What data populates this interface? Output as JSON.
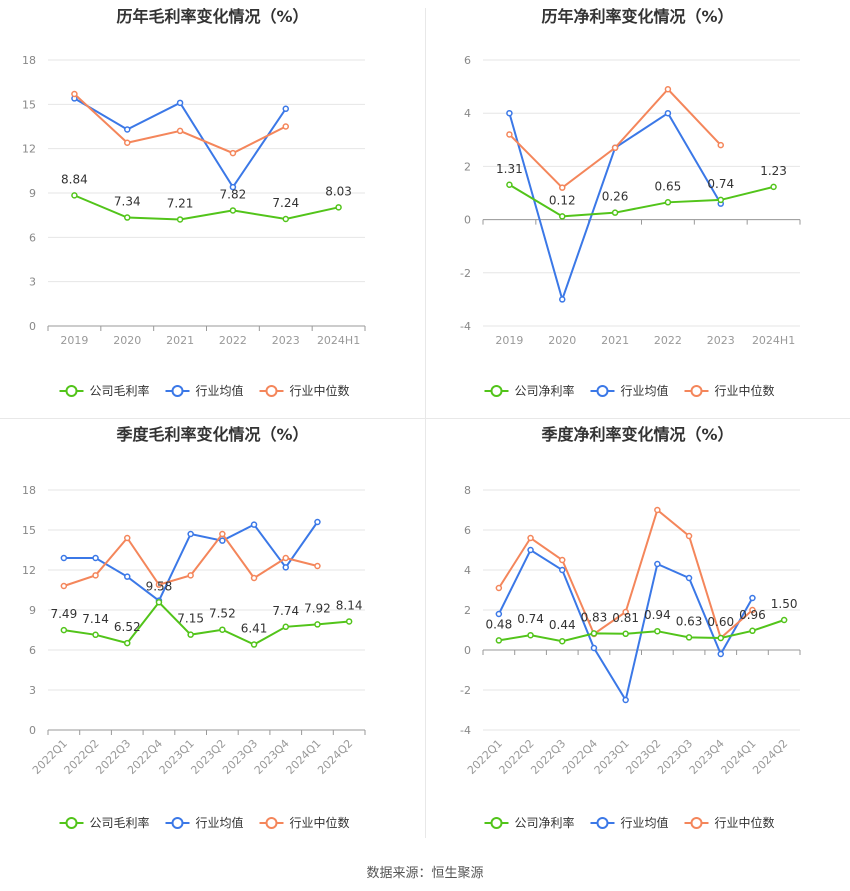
{
  "source_label": "数据来源：恒生聚源",
  "colors": {
    "company": "#52c41a",
    "industry_avg": "#3b78e7",
    "industry_median": "#f4865b"
  },
  "chart_data": [
    {
      "type": "line",
      "title": "历年毛利率变化情况（%）",
      "categories": [
        "2019",
        "2020",
        "2021",
        "2022",
        "2023",
        "2024H1"
      ],
      "ylim": [
        0,
        18
      ],
      "yticks": [
        0,
        3,
        6,
        9,
        12,
        15,
        18
      ],
      "grid": true,
      "legend_position": "bottom",
      "series": [
        {
          "name": "公司毛利率",
          "key": "company",
          "values": [
            8.84,
            7.34,
            7.21,
            7.82,
            7.24,
            8.03
          ],
          "labels": [
            "8.84",
            "7.34",
            "7.21",
            "7.82",
            "7.24",
            "8.03"
          ]
        },
        {
          "name": "行业均值",
          "key": "industry_avg",
          "values": [
            15.4,
            13.3,
            15.1,
            9.4,
            14.7,
            null
          ]
        },
        {
          "name": "行业中位数",
          "key": "industry_median",
          "values": [
            15.7,
            12.4,
            13.2,
            11.7,
            13.5,
            null
          ]
        }
      ]
    },
    {
      "type": "line",
      "title": "历年净利率变化情况（%）",
      "categories": [
        "2019",
        "2020",
        "2021",
        "2022",
        "2023",
        "2024H1"
      ],
      "ylim": [
        -4,
        6
      ],
      "yticks": [
        -4,
        -2,
        0,
        2,
        4,
        6
      ],
      "grid": true,
      "legend_position": "bottom",
      "series": [
        {
          "name": "公司净利率",
          "key": "company",
          "values": [
            1.31,
            0.12,
            0.26,
            0.65,
            0.74,
            1.23
          ],
          "labels": [
            "1.31",
            "0.12",
            "0.26",
            "0.65",
            "0.74",
            "1.23"
          ]
        },
        {
          "name": "行业均值",
          "key": "industry_avg",
          "values": [
            4.0,
            -3.0,
            2.7,
            4.0,
            0.6,
            null
          ]
        },
        {
          "name": "行业中位数",
          "key": "industry_median",
          "values": [
            3.2,
            1.2,
            2.7,
            4.9,
            2.8,
            null
          ]
        }
      ]
    },
    {
      "type": "line",
      "title": "季度毛利率变化情况（%）",
      "categories": [
        "2022Q1",
        "2022Q2",
        "2022Q3",
        "2022Q4",
        "2023Q1",
        "2023Q2",
        "2023Q3",
        "2023Q4",
        "2024Q1",
        "2024Q2"
      ],
      "ylim": [
        0,
        18
      ],
      "yticks": [
        0,
        3,
        6,
        9,
        12,
        15,
        18
      ],
      "grid": true,
      "legend_position": "bottom",
      "series": [
        {
          "name": "公司毛利率",
          "key": "company",
          "values": [
            7.49,
            7.14,
            6.52,
            9.58,
            7.15,
            7.52,
            6.41,
            7.74,
            7.92,
            8.14
          ],
          "labels": [
            "7.49",
            "7.14",
            "6.52",
            "9.58",
            "7.15",
            "7.52",
            "6.41",
            "7.74",
            "7.92",
            "8.14"
          ]
        },
        {
          "name": "行业均值",
          "key": "industry_avg",
          "values": [
            12.9,
            12.9,
            11.5,
            9.7,
            14.7,
            14.2,
            15.4,
            12.2,
            15.6,
            null
          ]
        },
        {
          "name": "行业中位数",
          "key": "industry_median",
          "values": [
            10.8,
            11.6,
            14.4,
            10.9,
            11.6,
            14.7,
            11.4,
            12.9,
            12.3,
            null
          ]
        }
      ]
    },
    {
      "type": "line",
      "title": "季度净利率变化情况（%）",
      "categories": [
        "2022Q1",
        "2022Q2",
        "2022Q3",
        "2022Q4",
        "2023Q1",
        "2023Q2",
        "2023Q3",
        "2023Q4",
        "2024Q1",
        "2024Q2"
      ],
      "ylim": [
        -4,
        8
      ],
      "yticks": [
        -4,
        -2,
        0,
        2,
        4,
        6,
        8
      ],
      "grid": true,
      "legend_position": "bottom",
      "series": [
        {
          "name": "公司净利率",
          "key": "company",
          "values": [
            0.48,
            0.74,
            0.44,
            0.83,
            0.81,
            0.94,
            0.63,
            0.6,
            0.96,
            1.5
          ],
          "labels": [
            "0.48",
            "0.74",
            "0.44",
            "0.83",
            "0.81",
            "0.94",
            "0.63",
            "0.60",
            "0.96",
            "1.50"
          ]
        },
        {
          "name": "行业均值",
          "key": "industry_avg",
          "values": [
            1.8,
            5.0,
            4.0,
            0.1,
            -2.5,
            4.3,
            3.6,
            -0.2,
            2.6,
            null
          ]
        },
        {
          "name": "行业中位数",
          "key": "industry_median",
          "values": [
            3.1,
            5.6,
            4.5,
            0.8,
            1.9,
            7.0,
            5.7,
            0.6,
            2.0,
            null
          ]
        }
      ]
    }
  ]
}
